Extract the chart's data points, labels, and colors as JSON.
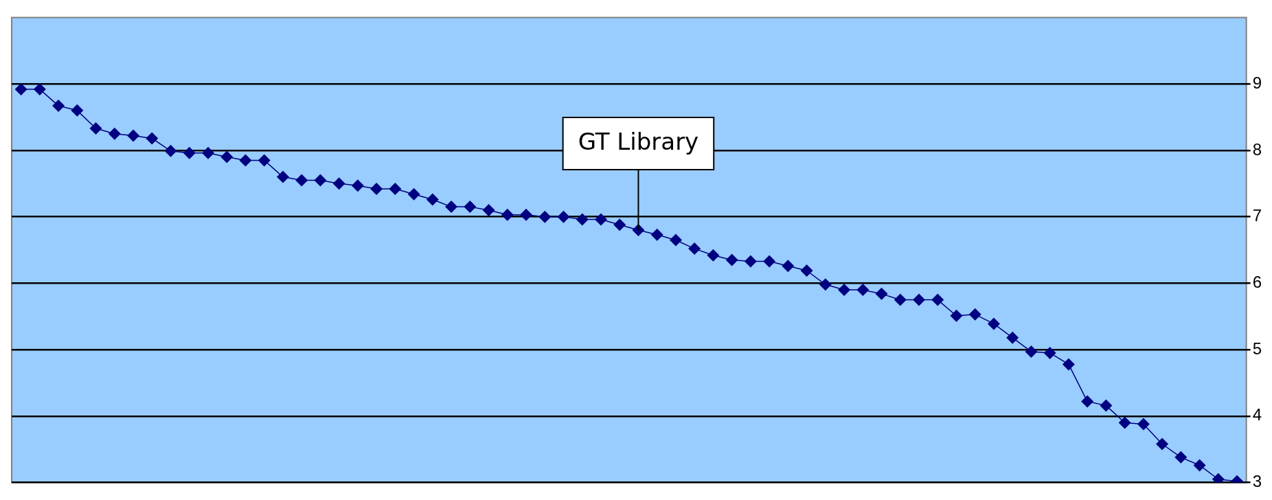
{
  "chart_data": {
    "type": "line",
    "categories": [
      null,
      null,
      null,
      null,
      null,
      null,
      null,
      null,
      null,
      null,
      null,
      null,
      null,
      null,
      null,
      null,
      null,
      null,
      null,
      null,
      null,
      null,
      null,
      null,
      null,
      null,
      null,
      null,
      null,
      null,
      null,
      null,
      null,
      null,
      null,
      null,
      null,
      null,
      null,
      null,
      null,
      null,
      null,
      null,
      null,
      null,
      null,
      null,
      null,
      null,
      null,
      null,
      null,
      null,
      null,
      null,
      null,
      null,
      null,
      null,
      null,
      null,
      null,
      null,
      null,
      null
    ],
    "series": [
      {
        "color": "#000080",
        "values": [
          8.92,
          8.92,
          8.67,
          8.6,
          8.33,
          8.25,
          8.22,
          8.18,
          7.99,
          7.96,
          7.96,
          7.9,
          7.85,
          7.85,
          7.6,
          7.55,
          7.55,
          7.5,
          7.47,
          7.42,
          7.42,
          7.34,
          7.26,
          7.15,
          7.15,
          7.1,
          7.03,
          7.03,
          7.0,
          7.0,
          6.96,
          6.96,
          6.88,
          6.8,
          6.73,
          6.65,
          6.52,
          6.42,
          6.35,
          6.33,
          6.33,
          6.26,
          6.19,
          5.98,
          5.9,
          5.9,
          5.84,
          5.75,
          5.75,
          5.75,
          5.51,
          5.53,
          5.39,
          5.18,
          4.97,
          4.95,
          4.78,
          4.22,
          4.16,
          3.9,
          3.88,
          3.58,
          3.38,
          3.26,
          3.05,
          3.02
        ]
      }
    ],
    "ylim": [
      3,
      10
    ],
    "yticks": [
      3,
      4,
      5,
      6,
      7,
      8,
      9
    ],
    "grid": "y",
    "marker": "diamond",
    "line_style": "solid",
    "annotations": [
      {
        "text": "GT Library",
        "y": 6.8
      }
    ]
  }
}
